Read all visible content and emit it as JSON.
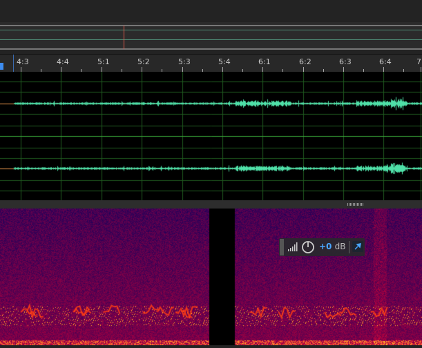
{
  "ruler": {
    "labels": [
      "4:3",
      "4:4",
      "5:1",
      "5:2",
      "5:3",
      "5:4",
      "6:1",
      "6:2",
      "6:3",
      "6:4",
      "7"
    ]
  },
  "hud": {
    "gain_value": "+0",
    "gain_unit": "dB",
    "icons": [
      "signal-strength-icon",
      "power-icon",
      "pin-icon"
    ]
  },
  "colors": {
    "waveform": "#4fe0a8",
    "grid": "#1f5a1f",
    "center_line": "#e0904a",
    "playhead": "#e05a4a",
    "accent": "#4aa6ff"
  }
}
